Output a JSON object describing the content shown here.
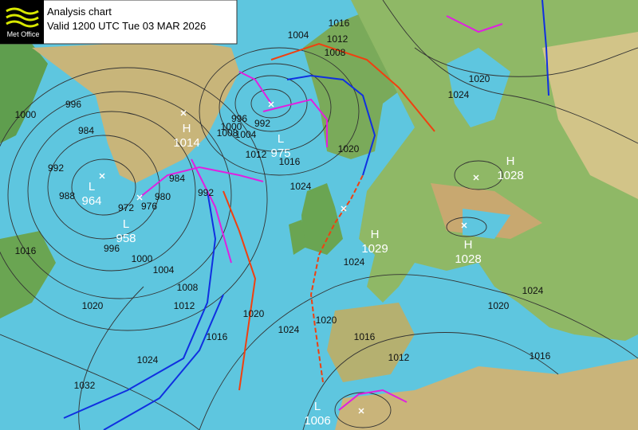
{
  "header": {
    "logo": "Met Office",
    "title": "Analysis chart",
    "valid": "Valid 1200 UTC Tue 03 MAR 2026"
  },
  "pressure_centers": [
    {
      "type": "L",
      "value": "964"
    },
    {
      "type": "L",
      "value": "958"
    },
    {
      "type": "H",
      "value": "1014"
    },
    {
      "type": "L",
      "value": "975"
    },
    {
      "type": "H",
      "value": "1028"
    },
    {
      "type": "H",
      "value": "1029"
    },
    {
      "type": "H",
      "value": "1028"
    },
    {
      "type": "L",
      "value": "1006"
    }
  ],
  "isobar_labels": [
    "1016",
    "1012",
    "1008",
    "1004",
    "1020",
    "1024",
    "996",
    "1000",
    "984",
    "992",
    "988",
    "972",
    "976",
    "980",
    "984",
    "992",
    "992",
    "996",
    "1000",
    "1004",
    "1008",
    "1012",
    "1016",
    "1020",
    "1024",
    "1016",
    "996",
    "1000",
    "1004",
    "1008",
    "1012",
    "1020",
    "1024",
    "1032",
    "1016",
    "1020",
    "1024",
    "1020",
    "1024",
    "1016",
    "1012",
    "1024",
    "1020",
    "1016"
  ]
}
